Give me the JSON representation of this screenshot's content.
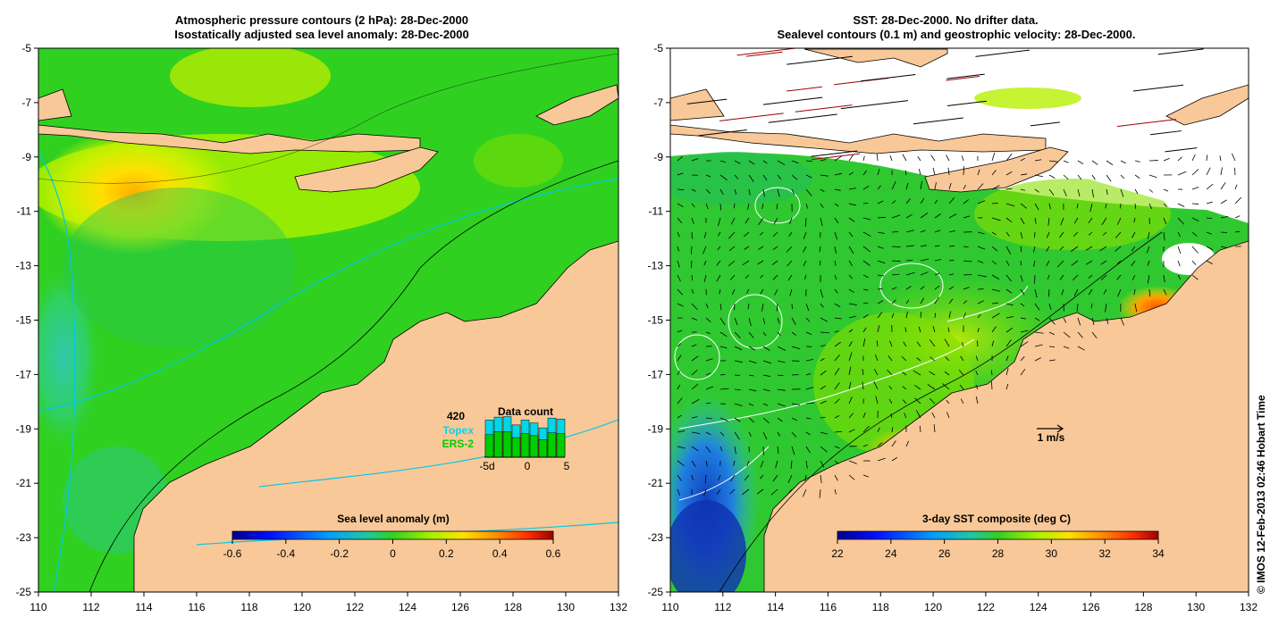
{
  "left_panel": {
    "title_line1": "Atmospheric pressure contours (2 hPa): 28-Dec-2000",
    "title_line2": "Isostatically adjusted sea level anomaly: 28-Dec-2000",
    "colorbar": {
      "label": "Sea level anomaly (m)",
      "ticks": [
        "-0.6",
        "-0.4",
        "-0.2",
        "0",
        "0.2",
        "0.4",
        "0.6"
      ],
      "range": [
        -0.6,
        0.6
      ]
    },
    "data_count": {
      "title": "Data count",
      "max_label": "420",
      "topex_label": "Topex",
      "ers2_label": "ERS-2",
      "x_ticks": [
        "-5d",
        "0",
        "5"
      ],
      "topex_counts": [
        380,
        410,
        415,
        330,
        380,
        350,
        300,
        400,
        390
      ],
      "ers2_counts": [
        230,
        260,
        260,
        200,
        240,
        220,
        180,
        250,
        240
      ],
      "topex_color": "#00d8e8",
      "ers2_color": "#00cc00"
    }
  },
  "right_panel": {
    "title_line1": "SST: 28-Dec-2000. No drifter data.",
    "title_line2": "Sealevel contours (0.1 m) and geostrophic velocity: 28-Dec-2000.",
    "colorbar": {
      "label": "3-day SST composite (deg C)",
      "ticks": [
        "22",
        "24",
        "26",
        "28",
        "30",
        "32",
        "34"
      ],
      "range": [
        22,
        34
      ]
    },
    "velocity_scale_label": "1 m/s"
  },
  "axes": {
    "lon_ticks": [
      "110",
      "112",
      "114",
      "116",
      "118",
      "120",
      "122",
      "124",
      "126",
      "128",
      "130",
      "132"
    ],
    "lat_ticks": [
      "-5",
      "-7",
      "-9",
      "-11",
      "-13",
      "-15",
      "-17",
      "-19",
      "-21",
      "-23",
      "-25"
    ],
    "lon_range": [
      110,
      132
    ],
    "lat_range": [
      -25,
      -5
    ]
  },
  "credit": "© IMOS 12-Feb-2013 02:46 Hobart Time",
  "colors": {
    "land": "#f8c898",
    "ocean_anomaly_base": "#30d020",
    "sst_base": "#30c830",
    "white_missing": "#ffffff"
  }
}
